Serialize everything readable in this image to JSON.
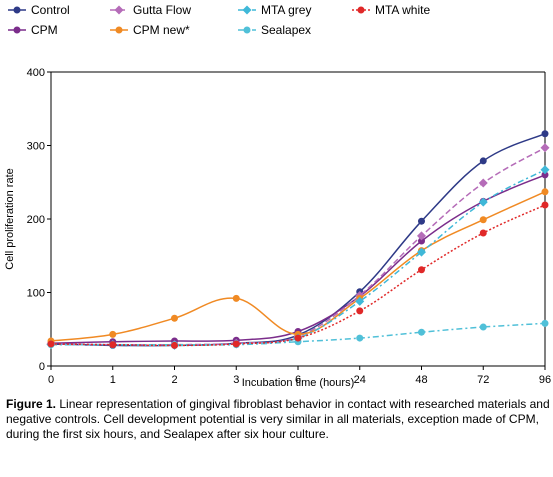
{
  "chart_data": {
    "type": "line",
    "categories": [
      "0",
      "1",
      "2",
      "3",
      "6",
      "24",
      "48",
      "72",
      "96"
    ],
    "xlabel": "Incubation time (hours)",
    "ylabel": "Cell proliferation rate",
    "ylim": [
      0,
      400
    ],
    "yticks": [
      0,
      100,
      200,
      300,
      400
    ],
    "grid": false,
    "legend_position": "top",
    "series": [
      {
        "name": "Control",
        "color": "#2e3a87",
        "dash": "solid",
        "marker": "circle",
        "values": [
          30,
          28,
          28,
          31,
          42,
          101,
          197,
          279,
          316
        ]
      },
      {
        "name": "CPM",
        "color": "#7b2d8b",
        "dash": "solid",
        "marker": "circle",
        "values": [
          31,
          33,
          34,
          35,
          47,
          95,
          170,
          224,
          260
        ]
      },
      {
        "name": "Gutta Flow",
        "color": "#b56cb8",
        "dash": "dashed",
        "marker": "diamond",
        "values": [
          30,
          29,
          29,
          31,
          40,
          96,
          177,
          249,
          297
        ]
      },
      {
        "name": "CPM new*",
        "color": "#f08a24",
        "dash": "solid",
        "marker": "circle",
        "values": [
          34,
          43,
          65,
          92,
          43,
          92,
          157,
          199,
          237
        ]
      },
      {
        "name": "MTA grey",
        "color": "#3fb8d8",
        "dash": "dashdot",
        "marker": "diamond",
        "values": [
          29,
          29,
          28,
          30,
          38,
          88,
          155,
          223,
          267
        ]
      },
      {
        "name": "Sealapex",
        "color": "#50c0d8",
        "dash": "dashdot",
        "marker": "circle",
        "values": [
          29,
          29,
          29,
          29,
          33,
          38,
          46,
          53,
          58
        ]
      },
      {
        "name": "MTA white",
        "color": "#e02828",
        "dash": "dotted",
        "marker": "circle",
        "values": [
          30,
          29,
          28,
          30,
          38,
          75,
          131,
          181,
          219
        ]
      }
    ]
  },
  "caption": {
    "label": "Figure 1.",
    "text": " Linear representation of gingival fibroblast behavior in contact with researched materials and negative controls. Cell development potential is very similar in all materials, exception made of CPM, during the first six hours, and Sealapex after six hour culture."
  }
}
